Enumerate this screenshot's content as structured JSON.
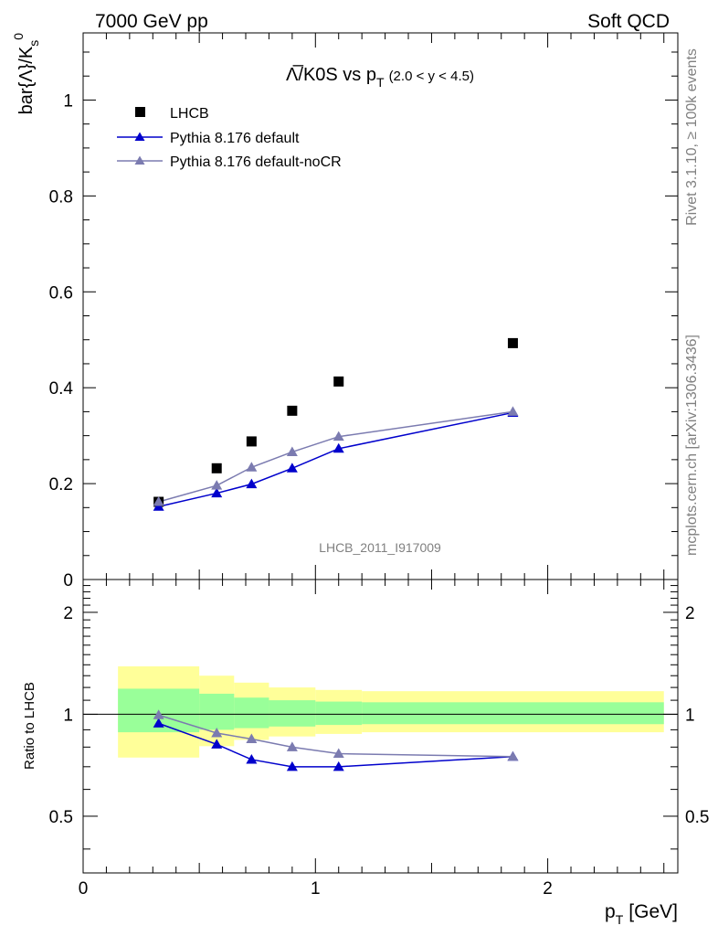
{
  "header": {
    "left": "7000 GeV pp",
    "right": "Soft QCD"
  },
  "side_labels": {
    "rivet": "Rivet 3.1.10, ≥ 100k events",
    "mcplots": "mcplots.cern.ch [arXiv:1306.3436]"
  },
  "chart_data": [
    {
      "type": "scatter",
      "title_main": "Λ̅/K0S vs p",
      "title_sub": "T",
      "title_range": "(2.0 < y < 4.5)",
      "ylabel": "bar{Λ}/K",
      "ylabel_sup": "0",
      "ylabel_sub": "s",
      "watermark": "LHCB_2011_I917009",
      "xlim": [
        0,
        2.56
      ],
      "ylim": [
        0,
        1.14
      ],
      "yticks": [
        0,
        0.2,
        0.4,
        0.6,
        0.8,
        1
      ],
      "ytick_labels": [
        "0",
        "0.2",
        "0.4",
        "0.6",
        "0.8",
        "1"
      ],
      "legend_position": "top-left",
      "colors": {
        "data": "#000000",
        "default": "#0000cc",
        "nocr": "#7b7bb0"
      },
      "series": [
        {
          "name": "LHCB",
          "marker": "square",
          "x": [
            0.325,
            0.575,
            0.725,
            0.9,
            1.1,
            1.85
          ],
          "y": [
            0.162,
            0.232,
            0.288,
            0.352,
            0.413,
            0.493
          ]
        },
        {
          "name": "Pythia 8.176 default",
          "marker": "triangle",
          "x": [
            0.325,
            0.575,
            0.725,
            0.9,
            1.1,
            1.85
          ],
          "y": [
            0.152,
            0.18,
            0.199,
            0.232,
            0.273,
            0.348
          ]
        },
        {
          "name": "Pythia 8.176 default-noCR",
          "marker": "triangle",
          "x": [
            0.325,
            0.575,
            0.725,
            0.9,
            1.1,
            1.85
          ],
          "y": [
            0.162,
            0.196,
            0.234,
            0.266,
            0.298,
            0.35
          ]
        }
      ]
    },
    {
      "type": "line",
      "ylabel": "Ratio to LHCB",
      "xlabel": "p",
      "xlabel_sub": "T",
      "xlabel_unit": "[GeV]",
      "xlim": [
        0,
        2.56
      ],
      "ylim": [
        0.34,
        2.5
      ],
      "log_y": true,
      "xticks": [
        0,
        1,
        2
      ],
      "xtick_labels": [
        "0",
        "1",
        "2"
      ],
      "yticks": [
        0.5,
        1,
        2
      ],
      "ytick_labels": [
        "0.5",
        "1",
        "2"
      ],
      "bands": {
        "x_edges": [
          0.15,
          0.5,
          0.65,
          0.8,
          1.0,
          1.2,
          2.5
        ],
        "yellow_lo": [
          0.745,
          0.805,
          0.84,
          0.86,
          0.875,
          0.885
        ],
        "yellow_hi": [
          1.385,
          1.3,
          1.24,
          1.2,
          1.18,
          1.17
        ],
        "green_lo": [
          0.885,
          0.9,
          0.91,
          0.92,
          0.93,
          0.935
        ],
        "green_hi": [
          1.19,
          1.15,
          1.12,
          1.1,
          1.09,
          1.085
        ]
      },
      "series": [
        {
          "name": "Pythia 8.176 default",
          "x": [
            0.325,
            0.575,
            0.725,
            0.9,
            1.1,
            1.85
          ],
          "y": [
            0.94,
            0.815,
            0.735,
            0.7,
            0.7,
            0.75
          ]
        },
        {
          "name": "Pythia 8.176 default-noCR",
          "x": [
            0.325,
            0.575,
            0.725,
            0.9,
            1.1,
            1.85
          ],
          "y": [
            0.995,
            0.88,
            0.845,
            0.8,
            0.765,
            0.75
          ]
        }
      ]
    }
  ]
}
